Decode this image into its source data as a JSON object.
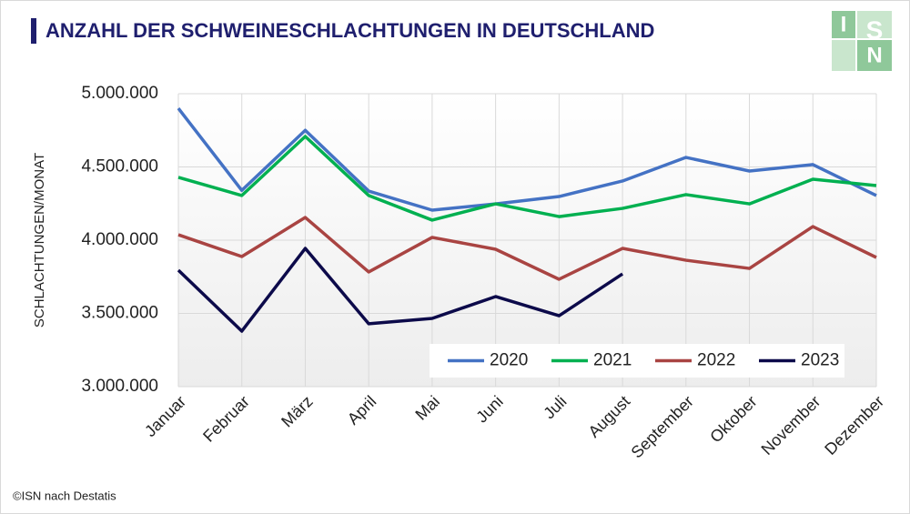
{
  "chart_data": {
    "type": "line",
    "title": "ANZAHL DER SCHWEINESCHLACHTUNGEN IN DEUTSCHLAND",
    "y_label": "SCHLACHTUNGEN/MONAT",
    "source": "©ISN nach Destatis",
    "logo": [
      "I",
      "S",
      "N"
    ],
    "categories": [
      "Januar",
      "Februar",
      "März",
      "April",
      "Mai",
      "Juni",
      "Juli",
      "August",
      "September",
      "Oktober",
      "November",
      "Dezember"
    ],
    "ylim": [
      3000000,
      5000000
    ],
    "yticks": [
      {
        "value": 3000000,
        "label": "3.000.000"
      },
      {
        "value": 3500000,
        "label": "3.500.000"
      },
      {
        "value": 4000000,
        "label": "4.000.000"
      },
      {
        "value": 4500000,
        "label": "4.500.000"
      },
      {
        "value": 5000000,
        "label": "5.000.000"
      }
    ],
    "grid": true,
    "legend": "lower right",
    "series": [
      {
        "name": "2020",
        "color": "#4472c4",
        "values": [
          4900000,
          4340000,
          4750000,
          4335000,
          4205000,
          4248000,
          4298000,
          4404000,
          4565000,
          4472000,
          4516000,
          4305000
        ]
      },
      {
        "name": "2021",
        "color": "#00b050",
        "values": [
          4429000,
          4305000,
          4708000,
          4305000,
          4137000,
          4248000,
          4161000,
          4217000,
          4311000,
          4248000,
          4416000,
          4373000
        ]
      },
      {
        "name": "2022",
        "color": "#a94442",
        "values": [
          4037000,
          3888000,
          4155000,
          3783000,
          4019000,
          3938000,
          3733000,
          3944000,
          3863000,
          3807000,
          4093000,
          3882000
        ]
      },
      {
        "name": "2023",
        "color": "#0c0a4a",
        "values": [
          3795000,
          3379000,
          3944000,
          3429000,
          3466000,
          3615000,
          3484000,
          3770000,
          null,
          null,
          null,
          null
        ]
      }
    ]
  }
}
